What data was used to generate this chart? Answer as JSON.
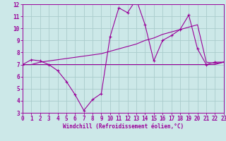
{
  "xlabel": "Windchill (Refroidissement éolien,°C)",
  "xlim": [
    0,
    23
  ],
  "ylim": [
    3,
    12
  ],
  "yticks": [
    3,
    4,
    5,
    6,
    7,
    8,
    9,
    10,
    11,
    12
  ],
  "xticks": [
    0,
    1,
    2,
    3,
    4,
    5,
    6,
    7,
    8,
    9,
    10,
    11,
    12,
    13,
    14,
    15,
    16,
    17,
    18,
    19,
    20,
    21,
    22,
    23
  ],
  "background_color": "#cce8e8",
  "grid_color": "#aacccc",
  "line_color": "#990099",
  "line1_x": [
    0,
    1,
    2,
    3,
    4,
    5,
    6,
    7,
    8,
    9,
    10,
    11,
    12,
    13,
    14,
    15,
    16,
    17,
    18,
    19,
    20,
    21,
    22,
    23
  ],
  "line1_y": [
    7.0,
    7.4,
    7.3,
    7.0,
    6.5,
    5.6,
    4.5,
    3.2,
    4.1,
    4.6,
    9.3,
    11.7,
    11.3,
    12.4,
    10.3,
    7.3,
    9.0,
    9.4,
    9.9,
    11.1,
    8.3,
    7.0,
    7.2,
    7.2
  ],
  "line2_x": [
    0,
    1,
    2,
    3,
    4,
    5,
    6,
    7,
    8,
    9,
    10,
    11,
    12,
    13,
    14,
    15,
    16,
    17,
    18,
    19,
    20,
    21,
    22,
    23
  ],
  "line2_y": [
    7.0,
    7.0,
    7.2,
    7.3,
    7.4,
    7.5,
    7.6,
    7.7,
    7.8,
    7.9,
    8.1,
    8.3,
    8.5,
    8.7,
    9.0,
    9.2,
    9.5,
    9.7,
    9.9,
    10.1,
    10.3,
    7.2,
    7.1,
    7.2
  ],
  "line3_x": [
    0,
    1,
    2,
    3,
    4,
    5,
    6,
    7,
    8,
    9,
    10,
    11,
    12,
    13,
    14,
    15,
    16,
    17,
    18,
    19,
    20,
    21,
    22,
    23
  ],
  "line3_y": [
    7.0,
    7.0,
    7.0,
    7.0,
    7.0,
    7.0,
    7.0,
    7.0,
    7.0,
    7.0,
    7.0,
    7.0,
    7.0,
    7.0,
    7.0,
    7.0,
    7.0,
    7.0,
    7.0,
    7.0,
    7.0,
    7.0,
    7.0,
    7.2
  ],
  "tick_labelsize": 5.5,
  "xlabel_fontsize": 5.5
}
